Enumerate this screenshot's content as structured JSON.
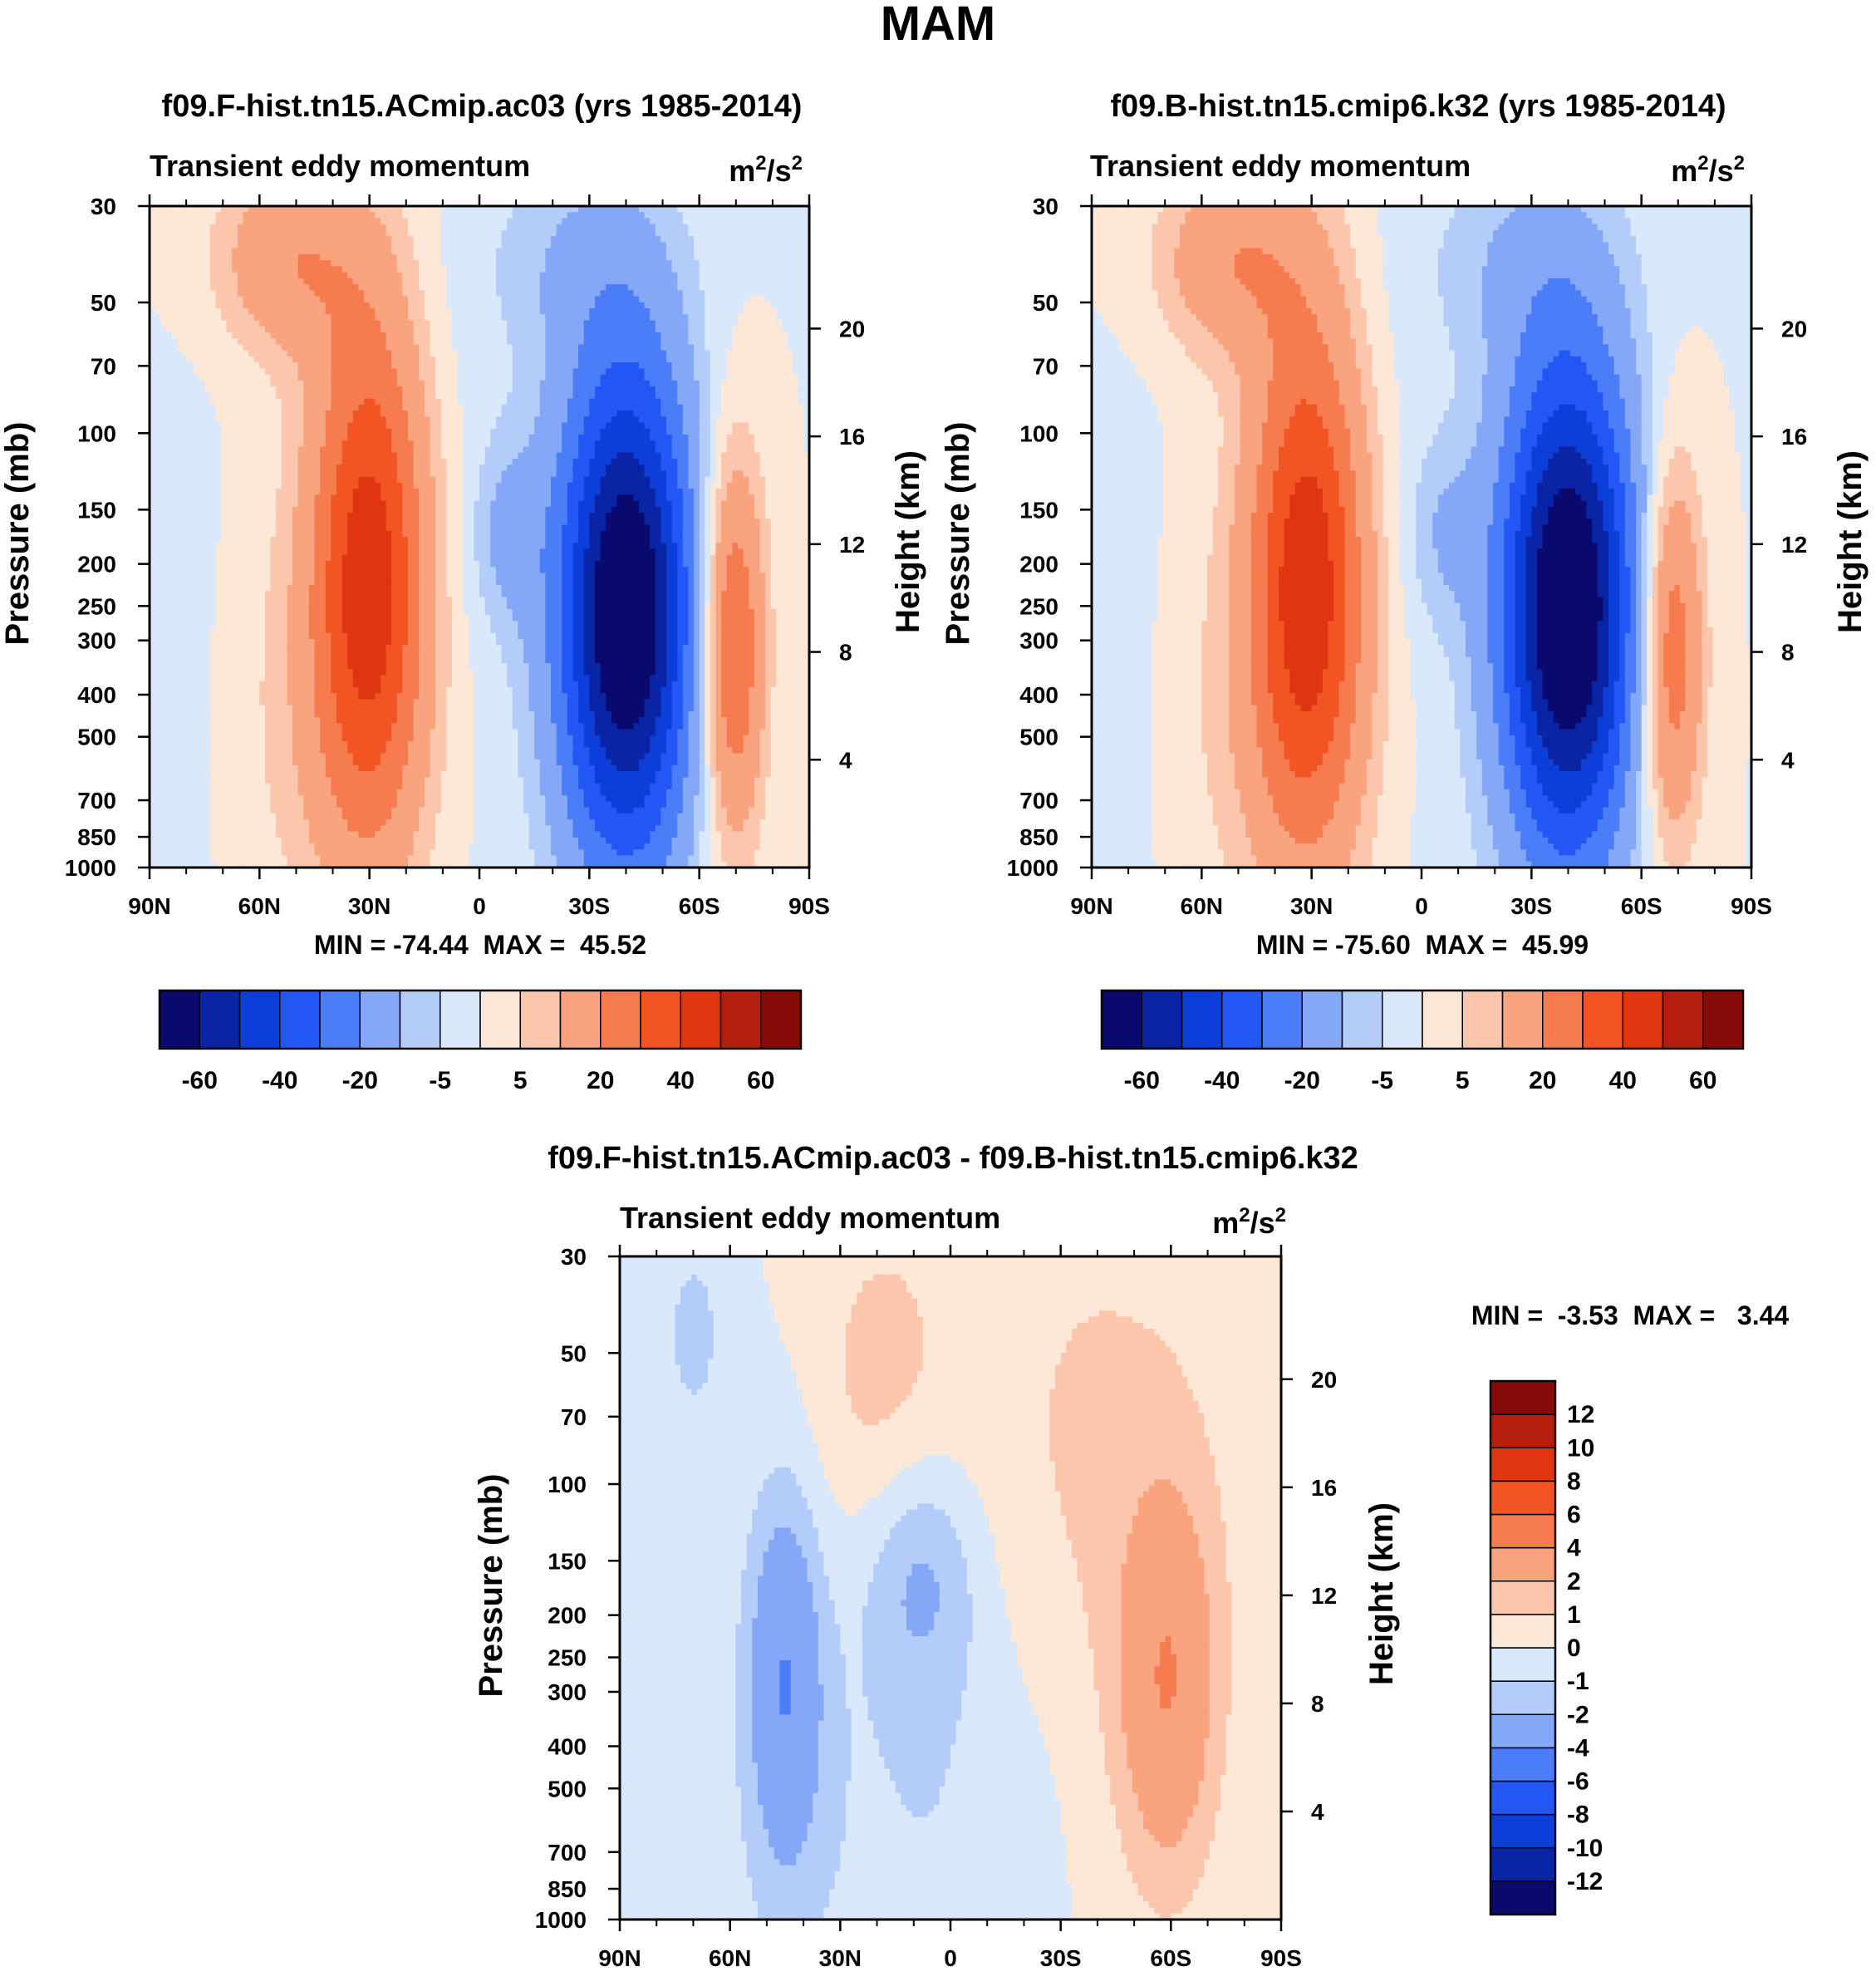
{
  "figure_title": "MAM",
  "chart_data": [
    {
      "type": "contour",
      "title": "f09.F-hist.tn15.ACmip.ac03 (yrs 1985-2014)",
      "left_label": "Transient eddy momentum",
      "units_base": "m",
      "units_exp1": "2",
      "units_mid": "/s",
      "units_exp2": "2",
      "xlabel": "",
      "ylabel": "Pressure (mb)",
      "y2label": "Height (km)",
      "x_ticks": [
        "90N",
        "60N",
        "30N",
        "0",
        "30S",
        "60S",
        "90S"
      ],
      "x_range": [
        90,
        -90
      ],
      "p_ticks": [
        30,
        50,
        70,
        100,
        150,
        200,
        250,
        300,
        400,
        500,
        700,
        850,
        1000
      ],
      "p_range": [
        30,
        1000
      ],
      "z_ticks": [
        4,
        8,
        12,
        16,
        20
      ],
      "stats_text": "MIN = -74.44  MAX =  45.52",
      "min": -74.44,
      "max": 45.52,
      "colorbar": "a",
      "features": [
        {
          "lat": 30,
          "p": 210,
          "amp": 45.5,
          "w": 11,
          "h": 1.0
        },
        {
          "lat": 52,
          "p": 40,
          "amp": 18,
          "w": 14,
          "h": 0.35
        },
        {
          "lat": 40,
          "p": 450,
          "amp": 6,
          "w": 25,
          "h": 0.9
        },
        {
          "lat": -40,
          "p": 260,
          "amp": -74.4,
          "w": 13,
          "h": 0.95
        },
        {
          "lat": -8,
          "p": 170,
          "amp": -10,
          "w": 7,
          "h": 0.35
        },
        {
          "lat": -27,
          "p": 40,
          "amp": -8,
          "w": 18,
          "h": 0.4
        },
        {
          "lat": -69,
          "p": 310,
          "amp": 34,
          "w": 6,
          "h": 0.7
        },
        {
          "lat": 80,
          "p": 400,
          "amp": -3,
          "w": 10,
          "h": 1.2
        },
        {
          "lat": 10,
          "p": 250,
          "amp": -3,
          "w": 20,
          "h": 1.5
        }
      ]
    },
    {
      "type": "contour",
      "title": "f09.B-hist.tn15.cmip6.k32 (yrs 1985-2014)",
      "left_label": "Transient eddy momentum",
      "units_base": "m",
      "units_exp1": "2",
      "units_mid": "/s",
      "units_exp2": "2",
      "xlabel": "",
      "ylabel": "Pressure (mb)",
      "y2label": "Height (km)",
      "x_ticks": [
        "90N",
        "60N",
        "30N",
        "0",
        "30S",
        "60S",
        "90S"
      ],
      "x_range": [
        90,
        -90
      ],
      "p_ticks": [
        30,
        50,
        70,
        100,
        150,
        200,
        250,
        300,
        400,
        500,
        700,
        850,
        1000
      ],
      "p_range": [
        30,
        1000
      ],
      "z_ticks": [
        4,
        8,
        12,
        16,
        20
      ],
      "stats_text": "MIN = -75.60  MAX =  45.99",
      "min": -75.6,
      "max": 45.99,
      "colorbar": "a",
      "features": [
        {
          "lat": 31,
          "p": 215,
          "amp": 46,
          "w": 11,
          "h": 1.0
        },
        {
          "lat": 52,
          "p": 40,
          "amp": 18,
          "w": 14,
          "h": 0.35
        },
        {
          "lat": 40,
          "p": 450,
          "amp": 6,
          "w": 25,
          "h": 0.9
        },
        {
          "lat": -40,
          "p": 255,
          "amp": -75.6,
          "w": 13,
          "h": 0.95
        },
        {
          "lat": -6,
          "p": 170,
          "amp": -8,
          "w": 7,
          "h": 0.35
        },
        {
          "lat": -27,
          "p": 40,
          "amp": -8,
          "w": 18,
          "h": 0.4
        },
        {
          "lat": -68,
          "p": 320,
          "amp": 30,
          "w": 6,
          "h": 0.7
        },
        {
          "lat": 80,
          "p": 400,
          "amp": -3,
          "w": 10,
          "h": 1.2
        },
        {
          "lat": 10,
          "p": 250,
          "amp": -3,
          "w": 20,
          "h": 1.5
        }
      ]
    },
    {
      "type": "contour",
      "title": "f09.F-hist.tn15.ACmip.ac03 - f09.B-hist.tn15.cmip6.k32",
      "left_label": "Transient eddy momentum",
      "units_base": "m",
      "units_exp1": "2",
      "units_mid": "/s",
      "units_exp2": "2",
      "xlabel": "",
      "ylabel": "Pressure (mb)",
      "y2label": "Height (km)",
      "x_ticks": [
        "90N",
        "60N",
        "30N",
        "0",
        "30S",
        "60S",
        "90S"
      ],
      "x_range": [
        90,
        -90
      ],
      "p_ticks": [
        30,
        50,
        70,
        100,
        150,
        200,
        250,
        300,
        400,
        500,
        700,
        850,
        1000
      ],
      "p_range": [
        30,
        1000
      ],
      "z_ticks": [
        4,
        8,
        12,
        16,
        20
      ],
      "stats_text": "MIN =  -3.53  MAX =   3.44",
      "min": -3.53,
      "max": 3.44,
      "colorbar": "b",
      "features": [
        {
          "lat": 45,
          "p": 280,
          "amp": -3.5,
          "w": 7,
          "h": 0.7
        },
        {
          "lat": 8,
          "p": 160,
          "amp": -2.2,
          "w": 11,
          "h": 0.45
        },
        {
          "lat": -59,
          "p": 290,
          "amp": 3.4,
          "w": 9,
          "h": 0.7
        },
        {
          "lat": 70,
          "p": 45,
          "amp": -1.6,
          "w": 5,
          "h": 0.3
        },
        {
          "lat": 30,
          "p": 600,
          "amp": -0.8,
          "w": 30,
          "h": 1.4
        },
        {
          "lat": 20,
          "p": 60,
          "amp": 1.4,
          "w": 14,
          "h": 0.7
        },
        {
          "lat": -40,
          "p": 100,
          "amp": 1.2,
          "w": 30,
          "h": 1.5
        },
        {
          "lat": -10,
          "p": 500,
          "amp": -0.8,
          "w": 20,
          "h": 0.8
        }
      ]
    }
  ],
  "colorbars": {
    "a": {
      "levels": [
        -70,
        -60,
        -50,
        -40,
        -30,
        -20,
        -10,
        -5,
        0,
        5,
        10,
        20,
        30,
        40,
        50,
        60,
        70
      ],
      "colors": [
        "#0a0a6e",
        "#0a24a6",
        "#0d3ed8",
        "#2257f5",
        "#4a7df7",
        "#84a8f7",
        "#b3ccfa",
        "#d9e8fb",
        "#fde7d6",
        "#fcc6ad",
        "#f9a37f",
        "#f67c4f",
        "#f25523",
        "#df3511",
        "#b41f0d",
        "#860b08"
      ],
      "labels": [
        "-60",
        "-40",
        "-20",
        "-5",
        "5",
        "20",
        "40",
        "60"
      ]
    },
    "b": {
      "levels": [
        -14,
        -12,
        -10,
        -8,
        -6,
        -4,
        -2,
        -1,
        0,
        1,
        2,
        4,
        6,
        8,
        10,
        12,
        14
      ],
      "colors": [
        "#0a0a6e",
        "#0a24a6",
        "#0d3ed8",
        "#2257f5",
        "#4a7df7",
        "#84a8f7",
        "#b3ccfa",
        "#d9e8fb",
        "#fde7d6",
        "#fcc6ad",
        "#f9a37f",
        "#f67c4f",
        "#f25523",
        "#df3511",
        "#b41f0d",
        "#860b08"
      ],
      "labels": [
        "-12",
        "-10",
        "-8",
        "-6",
        "-4",
        "-2",
        "-1",
        "0",
        "1",
        "2",
        "4",
        "6",
        "8",
        "10",
        "12"
      ]
    }
  }
}
